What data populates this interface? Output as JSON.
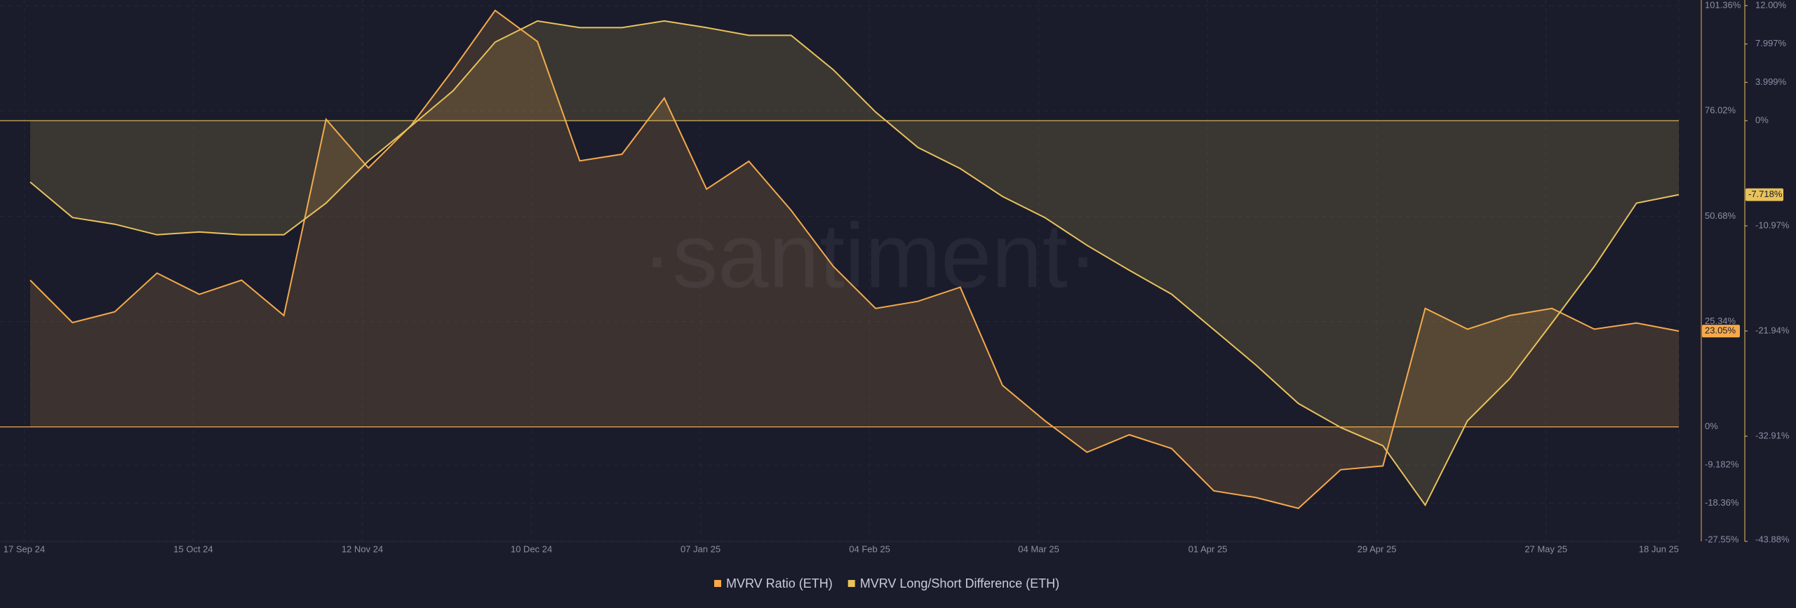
{
  "chart_data": {
    "type": "line",
    "watermark": "·santiment·",
    "xlim": [
      "2024-09-13",
      "2025-06-18"
    ],
    "xticks": [
      {
        "value": "2024-09-17",
        "label": "17 Sep 24"
      },
      {
        "value": "2024-10-15",
        "label": "15 Oct 24"
      },
      {
        "value": "2024-11-12",
        "label": "12 Nov 24"
      },
      {
        "value": "2024-12-10",
        "label": "10 Dec 24"
      },
      {
        "value": "2025-01-07",
        "label": "07 Jan 25"
      },
      {
        "value": "2025-02-04",
        "label": "04 Feb 25"
      },
      {
        "value": "2025-03-04",
        "label": "04 Mar 25"
      },
      {
        "value": "2025-04-01",
        "label": "01 Apr 25"
      },
      {
        "value": "2025-04-29",
        "label": "29 Apr 25"
      },
      {
        "value": "2025-05-27",
        "label": "27 May 25"
      },
      {
        "value": "2025-06-18",
        "label": "18 Jun 25"
      }
    ],
    "ylim": [
      -27.55,
      101.36
    ],
    "yticks": [
      {
        "value": 101.36,
        "label": "101.36%"
      },
      {
        "value": 76.02,
        "label": "76.02%"
      },
      {
        "value": 50.68,
        "label": "50.68%"
      },
      {
        "value": 25.34,
        "label": "25.34%"
      },
      {
        "value": 0,
        "label": "0%"
      },
      {
        "value": -9.182,
        "label": "-9.182%"
      },
      {
        "value": -18.36,
        "label": "-18.36%"
      },
      {
        "value": -27.55,
        "label": "-27.55%"
      }
    ],
    "y2lim": [
      -43.88,
      12
    ],
    "y2ticks": [
      {
        "value": 12,
        "label": "12.00%"
      },
      {
        "value": 7.997,
        "label": "7.997%"
      },
      {
        "value": 3.999,
        "label": "3.999%"
      },
      {
        "value": 0,
        "label": "0%"
      },
      {
        "value": -10.97,
        "label": "-10.97%"
      },
      {
        "value": -21.94,
        "label": "-21.94%"
      },
      {
        "value": -32.91,
        "label": "-32.91%"
      },
      {
        "value": -43.88,
        "label": "-43.88%"
      }
    ],
    "grid": true,
    "x": [
      "2024-09-18",
      "2024-09-25",
      "2024-10-02",
      "2024-10-09",
      "2024-10-16",
      "2024-10-23",
      "2024-10-30",
      "2024-11-06",
      "2024-11-13",
      "2024-11-20",
      "2024-11-27",
      "2024-12-04",
      "2024-12-11",
      "2024-12-18",
      "2024-12-25",
      "2025-01-01",
      "2025-01-08",
      "2025-01-15",
      "2025-01-22",
      "2025-01-29",
      "2025-02-05",
      "2025-02-12",
      "2025-02-19",
      "2025-02-26",
      "2025-03-05",
      "2025-03-12",
      "2025-03-19",
      "2025-03-26",
      "2025-04-02",
      "2025-04-09",
      "2025-04-16",
      "2025-04-23",
      "2025-04-30",
      "2025-05-07",
      "2025-05-14",
      "2025-05-21",
      "2025-05-28",
      "2025-06-04",
      "2025-06-11",
      "2025-06-18"
    ],
    "series": [
      {
        "name": "MVRV Ratio (ETH)",
        "color": "#f5a94a",
        "values": [
          35.3,
          25.1,
          27.7,
          37,
          31.9,
          35.3,
          26.8,
          74,
          62.3,
          72.4,
          85.9,
          100.2,
          92.7,
          64,
          65.6,
          79.1,
          57.2,
          63.9,
          52.1,
          38.6,
          28.5,
          30.2,
          33.6,
          10,
          1.5,
          -6.1,
          -1.9,
          -5.2,
          -15.4,
          -17,
          -19.6,
          -10.3,
          -9.4,
          28.5,
          23.5,
          26.8,
          28.5,
          23.5,
          25,
          23.05
        ],
        "value_labels": [
          null,
          null,
          null,
          null,
          null,
          null,
          null,
          null,
          null,
          null,
          null,
          null,
          null,
          null,
          null,
          null,
          null,
          null,
          null,
          null,
          null,
          null,
          null,
          null,
          null,
          null,
          null,
          null,
          null,
          null,
          null,
          null,
          null,
          null,
          null,
          null,
          null,
          null,
          null,
          "23.05%"
        ]
      },
      {
        "name": "MVRV Long/Short Difference (ETH)",
        "color": "#e8c25a",
        "axis": "y2",
        "values": [
          -6.4,
          -10.1,
          -10.8,
          -11.9,
          -11.6,
          -11.9,
          -11.9,
          -8.6,
          -4.2,
          -0.6,
          3.1,
          8.2,
          10.4,
          9.7,
          9.7,
          10.4,
          9.7,
          8.9,
          8.9,
          5.3,
          0.9,
          -2.8,
          -5,
          -7.9,
          -10.1,
          -13,
          -15.6,
          -18.1,
          -21.8,
          -25.5,
          -29.5,
          -32,
          -33.9,
          -40.1,
          -31.3,
          -26.9,
          -21.1,
          -15.2,
          -8.6,
          -7.718
        ],
        "value_labels": [
          null,
          null,
          null,
          null,
          null,
          null,
          null,
          null,
          null,
          null,
          null,
          null,
          null,
          null,
          null,
          null,
          null,
          null,
          null,
          null,
          null,
          null,
          null,
          null,
          null,
          null,
          null,
          null,
          null,
          null,
          null,
          null,
          null,
          null,
          null,
          null,
          null,
          null,
          null,
          "-7.718%"
        ]
      }
    ]
  }
}
